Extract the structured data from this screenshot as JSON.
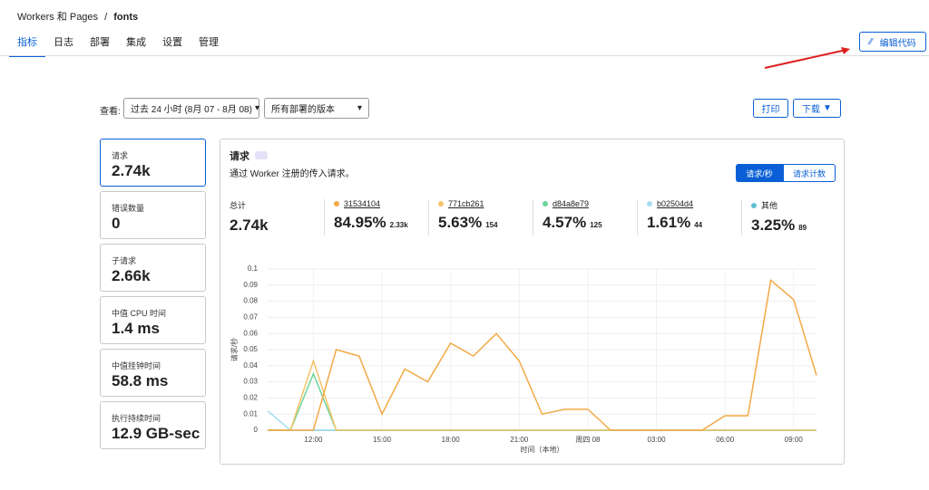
{
  "breadcrumb": {
    "parent": "Workers 和 Pages",
    "separator": "/",
    "current": "fonts"
  },
  "tabs": [
    "指标",
    "日志",
    "部署",
    "集成",
    "设置",
    "管理"
  ],
  "edit_button": "编辑代码",
  "filters": {
    "label": "查看:",
    "range": "过去 24 小时 (8月 07 - 8月 08)",
    "version": "所有部署的版本"
  },
  "actions": {
    "print": "打印",
    "download": "下载"
  },
  "metrics": [
    {
      "label": "请求",
      "value": "2.74k"
    },
    {
      "label": "错误数量",
      "value": "0"
    },
    {
      "label": "子请求",
      "value": "2.66k"
    },
    {
      "label": "中值 CPU 时间",
      "value": "1.4 ms"
    },
    {
      "label": "中值挂钟时间",
      "value": "58.8 ms"
    },
    {
      "label": "执行持续时间",
      "value": "12.9 GB-sec"
    }
  ],
  "panel": {
    "title": "请求",
    "subtitle": "通过 Worker 注册的传入请求。",
    "toggle": [
      "请求/秒",
      "请求计数"
    ],
    "summary": {
      "total_label": "总计",
      "total": "2.74k",
      "items": [
        {
          "percent": "84.95%",
          "count": "2.33k"
        },
        {
          "percent": "5.63%",
          "count": "154"
        },
        {
          "percent": "4.57%",
          "count": "125"
        },
        {
          "percent": "1.61%",
          "count": "44"
        },
        {
          "percent": "3.25%",
          "count": "89"
        }
      ]
    }
  },
  "chart_data": {
    "type": "line",
    "y_label": "请求/秒",
    "x_label": "时间（本地）",
    "categories": [
      null,
      null,
      "12:00",
      null,
      null,
      "15:00",
      null,
      null,
      "18:00",
      null,
      null,
      "21:00",
      null,
      null,
      "周四 08",
      null,
      null,
      "03:00",
      null,
      null,
      "06:00",
      null,
      null,
      "09:00",
      null
    ],
    "series": [
      {
        "name": "31534104",
        "color": "#f2a945",
        "values": [
          0,
          0,
          0,
          0.05,
          0.046,
          0.01,
          0.038,
          0.03,
          0.054,
          0.046,
          0.06,
          0.043,
          0.01,
          0.013,
          0.013,
          0,
          0,
          0,
          0,
          0,
          0.009,
          0.009,
          0.093,
          0.081,
          0.034
        ]
      },
      {
        "name": "771cb261",
        "color": "#f5c469",
        "values": [
          0,
          0,
          0.043,
          0,
          0,
          0,
          0,
          0,
          0,
          0,
          0,
          0,
          0,
          0,
          0,
          0,
          0,
          0,
          0,
          0,
          0,
          0,
          0,
          0,
          0
        ]
      },
      {
        "name": "d84a8e79",
        "color": "#6dd39b",
        "values": [
          0,
          0,
          0.035,
          0,
          0,
          0,
          0,
          0,
          0,
          0,
          0,
          0,
          0,
          0,
          0,
          0,
          0,
          0,
          0,
          0,
          0,
          0,
          0,
          0,
          0
        ]
      },
      {
        "name": "b02504d4",
        "color": "#a6dcf0",
        "values": [
          0.012,
          0,
          0,
          0,
          0,
          0,
          0,
          0,
          0,
          0,
          0,
          0,
          0,
          0,
          0,
          0,
          0,
          0,
          0,
          0,
          0,
          0,
          0,
          0,
          0
        ]
      },
      {
        "name": "其他",
        "color": "#5fbfd3",
        "values": [
          0,
          0,
          0,
          0,
          0,
          0,
          0,
          0,
          0,
          0,
          0,
          0,
          0,
          0,
          0,
          0,
          0,
          0,
          0,
          0,
          0,
          0,
          0,
          0,
          0
        ]
      }
    ],
    "ylim": [
      0,
      0.1
    ],
    "yticks": [
      0,
      0.01,
      0.02,
      0.03,
      0.04,
      0.05,
      0.06,
      0.07,
      0.08,
      0.09,
      0.1
    ],
    "grid": true
  }
}
